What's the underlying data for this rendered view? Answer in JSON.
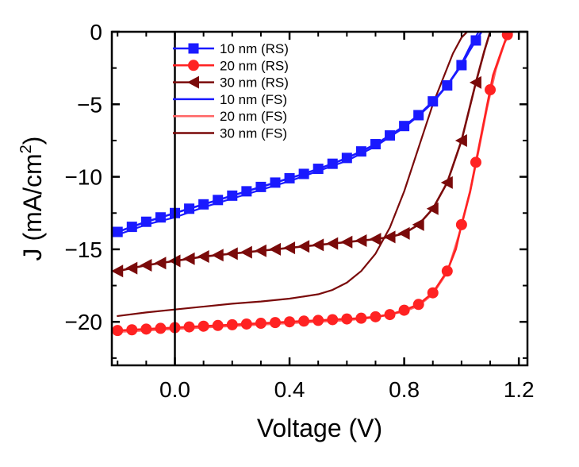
{
  "chart_data": {
    "type": "line",
    "title": "",
    "xlabel": "Voltage (V)",
    "ylabel_base": "J (mA/cm",
    "ylabel_sup": "2",
    "ylabel_close": ")",
    "xlim": [
      -0.22,
      1.23
    ],
    "ylim": [
      -23,
      0
    ],
    "x_major_ticks": [
      0.0,
      0.4,
      0.8,
      1.2
    ],
    "x_tick_labels": [
      "0.0",
      "0.4",
      "0.8",
      "1.2"
    ],
    "y_major_ticks": [
      0,
      -5,
      -10,
      -15,
      -20
    ],
    "y_tick_labels": [
      "0",
      "−5",
      "−10",
      "−15",
      "−20"
    ],
    "vertical_line_x": 0.0,
    "legend_position": "top-center",
    "series": [
      {
        "name": "10 nm (RS)",
        "color": "#1a1aff",
        "marker": "square",
        "x": [
          -0.2,
          -0.15,
          -0.1,
          -0.05,
          0.0,
          0.05,
          0.1,
          0.15,
          0.2,
          0.25,
          0.3,
          0.35,
          0.4,
          0.45,
          0.5,
          0.55,
          0.6,
          0.65,
          0.7,
          0.75,
          0.8,
          0.85,
          0.9,
          0.95,
          1.0,
          1.025,
          1.05,
          1.07
        ],
        "y": [
          -13.8,
          -13.45,
          -13.1,
          -12.8,
          -12.5,
          -12.2,
          -11.9,
          -11.6,
          -11.3,
          -11.0,
          -10.7,
          -10.4,
          -10.1,
          -9.8,
          -9.45,
          -9.1,
          -8.7,
          -8.25,
          -7.75,
          -7.15,
          -6.5,
          -5.75,
          -4.8,
          -3.7,
          -2.3,
          -1.4,
          -0.6,
          0.0
        ],
        "marker_x": [
          -0.2,
          -0.15,
          -0.1,
          -0.05,
          0.0,
          0.05,
          0.1,
          0.15,
          0.2,
          0.25,
          0.3,
          0.35,
          0.4,
          0.45,
          0.5,
          0.55,
          0.6,
          0.65,
          0.7,
          0.75,
          0.8,
          0.85,
          0.9,
          0.95,
          1.0,
          1.05
        ]
      },
      {
        "name": "20 nm (RS)",
        "color": "#ff2222",
        "marker": "circle",
        "x": [
          -0.2,
          -0.15,
          -0.1,
          -0.05,
          0.0,
          0.05,
          0.1,
          0.15,
          0.2,
          0.25,
          0.3,
          0.35,
          0.4,
          0.45,
          0.5,
          0.55,
          0.6,
          0.65,
          0.7,
          0.75,
          0.8,
          0.85,
          0.9,
          0.95,
          0.98,
          1.0,
          1.03,
          1.06,
          1.09,
          1.11,
          1.14,
          1.16,
          1.18
        ],
        "y": [
          -20.6,
          -20.55,
          -20.5,
          -20.45,
          -20.4,
          -20.35,
          -20.3,
          -20.25,
          -20.2,
          -20.15,
          -20.1,
          -20.05,
          -20.0,
          -19.95,
          -19.9,
          -19.85,
          -19.8,
          -19.75,
          -19.65,
          -19.5,
          -19.2,
          -18.8,
          -18.0,
          -16.5,
          -15.0,
          -13.3,
          -11.0,
          -8.0,
          -5.0,
          -3.0,
          -1.3,
          -0.2,
          0.0
        ],
        "marker_x": [
          -0.2,
          -0.15,
          -0.1,
          -0.05,
          0.0,
          0.05,
          0.1,
          0.15,
          0.2,
          0.25,
          0.3,
          0.35,
          0.4,
          0.45,
          0.5,
          0.55,
          0.6,
          0.65,
          0.7,
          0.75,
          0.8,
          0.85,
          0.9,
          0.95,
          1.0,
          1.05,
          1.1,
          1.16
        ]
      },
      {
        "name": "30 nm (RS)",
        "color": "#7a0a0a",
        "marker": "triangle-left",
        "x": [
          -0.2,
          -0.15,
          -0.1,
          -0.05,
          0.0,
          0.05,
          0.1,
          0.15,
          0.2,
          0.25,
          0.3,
          0.35,
          0.4,
          0.45,
          0.5,
          0.55,
          0.6,
          0.65,
          0.7,
          0.75,
          0.8,
          0.85,
          0.9,
          0.95,
          1.0,
          1.05,
          1.08,
          1.1
        ],
        "y": [
          -16.5,
          -16.3,
          -16.1,
          -15.95,
          -15.8,
          -15.65,
          -15.5,
          -15.4,
          -15.3,
          -15.2,
          -15.1,
          -15.0,
          -14.9,
          -14.8,
          -14.7,
          -14.6,
          -14.5,
          -14.4,
          -14.3,
          -14.15,
          -13.9,
          -13.3,
          -12.2,
          -10.4,
          -7.5,
          -3.5,
          -1.3,
          0.0
        ],
        "marker_x": [
          -0.2,
          -0.15,
          -0.1,
          -0.05,
          0.0,
          0.05,
          0.1,
          0.15,
          0.2,
          0.25,
          0.3,
          0.35,
          0.4,
          0.45,
          0.5,
          0.55,
          0.6,
          0.65,
          0.7,
          0.75,
          0.8,
          0.85,
          0.9,
          0.95,
          1.0,
          1.05
        ]
      },
      {
        "name": "10 nm (FS)",
        "color": "#1a1aff",
        "marker": "none",
        "x": [
          -0.2,
          -0.1,
          0.0,
          0.1,
          0.2,
          0.3,
          0.4,
          0.5,
          0.6,
          0.7,
          0.8,
          0.85,
          0.9,
          0.95,
          1.0,
          1.03,
          1.06
        ],
        "y": [
          -14.0,
          -13.3,
          -12.8,
          -12.1,
          -11.5,
          -10.9,
          -10.3,
          -9.6,
          -8.9,
          -7.9,
          -6.6,
          -5.8,
          -4.9,
          -3.7,
          -2.2,
          -1.0,
          0.0
        ]
      },
      {
        "name": "20 nm (FS)",
        "color": "#ff6666",
        "marker": "none",
        "x": [
          -0.2,
          0.0,
          0.2,
          0.4,
          0.6,
          0.7,
          0.8,
          0.85,
          0.9,
          0.95,
          1.0,
          1.03,
          1.06,
          1.09,
          1.12,
          1.15,
          1.17
        ],
        "y": [
          -20.7,
          -20.5,
          -20.3,
          -20.1,
          -19.9,
          -19.7,
          -19.3,
          -18.9,
          -18.1,
          -16.6,
          -13.4,
          -11.1,
          -8.2,
          -5.2,
          -2.6,
          -0.8,
          0.0
        ]
      },
      {
        "name": "30 nm (FS)",
        "color": "#7a0a0a",
        "marker": "none",
        "x": [
          -0.2,
          -0.1,
          0.0,
          0.1,
          0.2,
          0.3,
          0.4,
          0.5,
          0.55,
          0.6,
          0.65,
          0.7,
          0.75,
          0.8,
          0.85,
          0.9,
          0.94,
          0.97,
          1.0,
          1.02
        ],
        "y": [
          -19.6,
          -19.35,
          -19.15,
          -18.95,
          -18.75,
          -18.6,
          -18.4,
          -18.1,
          -17.8,
          -17.3,
          -16.5,
          -15.3,
          -13.5,
          -11.0,
          -8.0,
          -5.0,
          -3.0,
          -1.5,
          -0.4,
          0.0
        ]
      }
    ]
  }
}
